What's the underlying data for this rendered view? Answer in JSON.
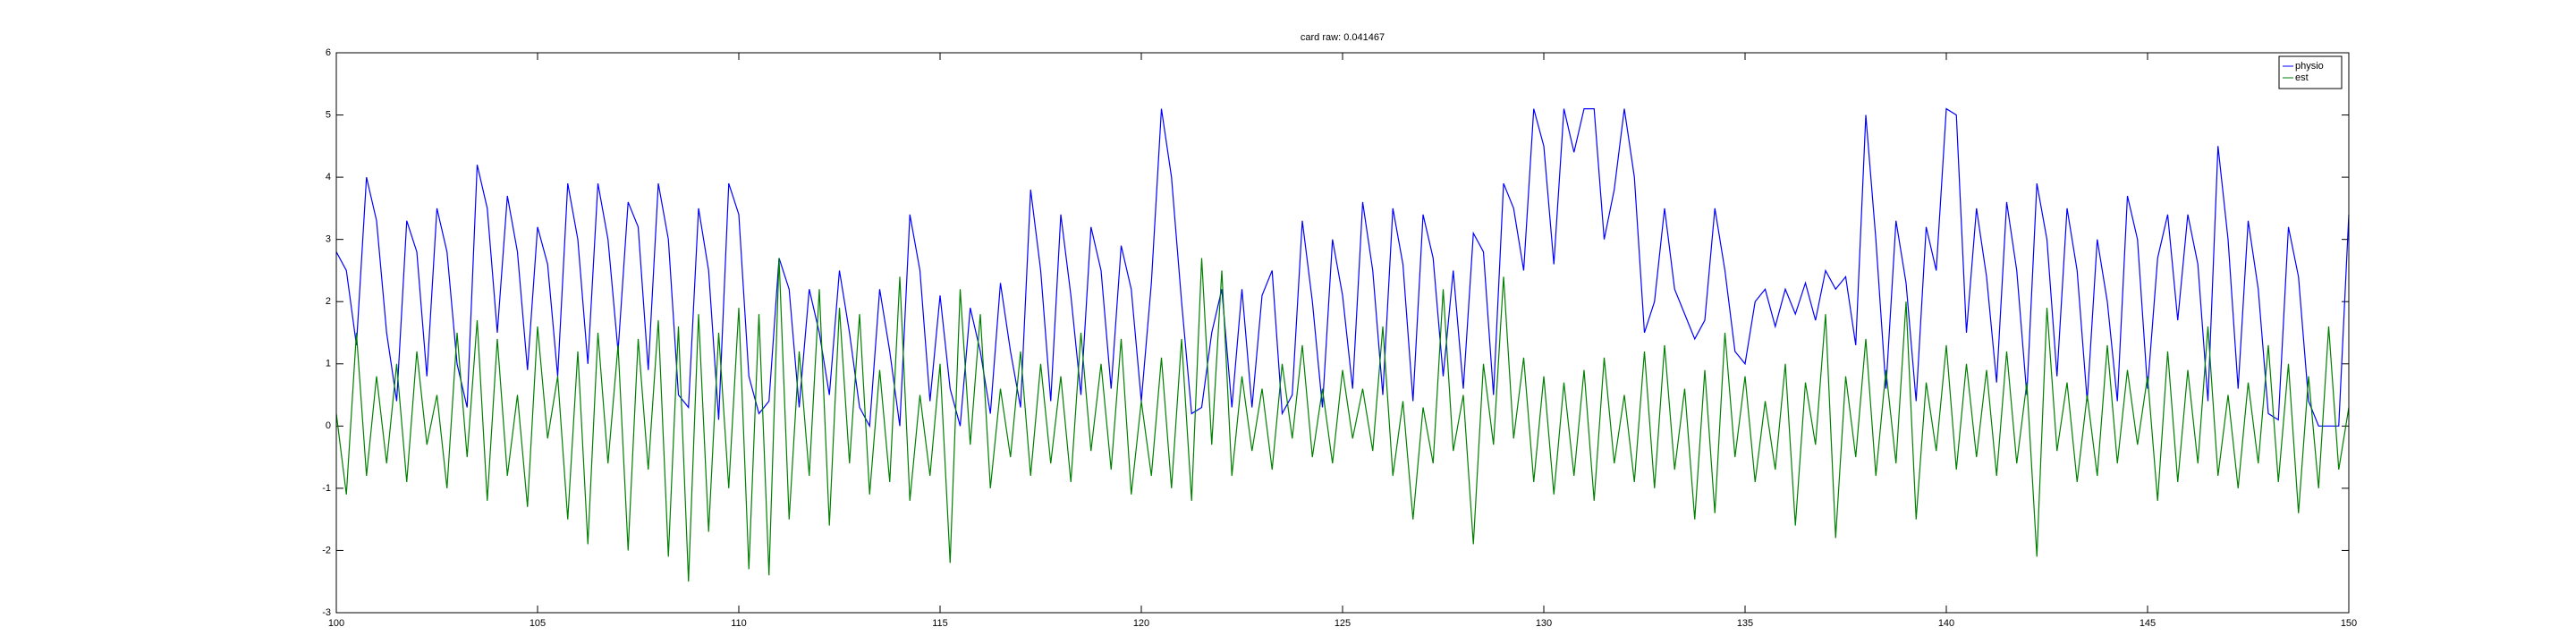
{
  "chart_data": {
    "type": "line",
    "title": "card raw: 0.041467",
    "x": [
      100,
      100.25,
      100.5,
      100.75,
      101,
      101.25,
      101.5,
      101.75,
      102,
      102.25,
      102.5,
      102.75,
      103,
      103.25,
      103.5,
      103.75,
      104,
      104.25,
      104.5,
      104.75,
      105,
      105.25,
      105.5,
      105.75,
      106,
      106.25,
      106.5,
      106.75,
      107,
      107.25,
      107.5,
      107.75,
      108,
      108.25,
      108.5,
      108.75,
      109,
      109.25,
      109.5,
      109.75,
      110,
      110.25,
      110.5,
      110.75,
      111,
      111.25,
      111.5,
      111.75,
      112,
      112.25,
      112.5,
      112.75,
      113,
      113.25,
      113.5,
      113.75,
      114,
      114.25,
      114.5,
      114.75,
      115,
      115.25,
      115.5,
      115.75,
      116,
      116.25,
      116.5,
      116.75,
      117,
      117.25,
      117.5,
      117.75,
      118,
      118.25,
      118.5,
      118.75,
      119,
      119.25,
      119.5,
      119.75,
      120,
      120.25,
      120.5,
      120.75,
      121,
      121.25,
      121.5,
      121.75,
      122,
      122.25,
      122.5,
      122.75,
      123,
      123.25,
      123.5,
      123.75,
      124,
      124.25,
      124.5,
      124.75,
      125,
      125.25,
      125.5,
      125.75,
      126,
      126.25,
      126.5,
      126.75,
      127,
      127.25,
      127.5,
      127.75,
      128,
      128.25,
      128.5,
      128.75,
      129,
      129.25,
      129.5,
      129.75,
      130,
      130.25,
      130.5,
      130.75,
      131,
      131.25,
      131.5,
      131.75,
      132,
      132.25,
      132.5,
      132.75,
      133,
      133.25,
      133.5,
      133.75,
      134,
      134.25,
      134.5,
      134.75,
      135,
      135.25,
      135.5,
      135.75,
      136,
      136.25,
      136.5,
      136.75,
      137,
      137.25,
      137.5,
      137.75,
      138,
      138.25,
      138.5,
      138.75,
      139,
      139.25,
      139.5,
      139.75,
      140,
      140.25,
      140.5,
      140.75,
      141,
      141.25,
      141.5,
      141.75,
      142,
      142.25,
      142.5,
      142.75,
      143,
      143.25,
      143.5,
      143.75,
      144,
      144.25,
      144.5,
      144.75,
      145,
      145.25,
      145.5,
      145.75,
      146,
      146.25,
      146.5,
      146.75,
      147,
      147.25,
      147.5,
      147.75,
      148,
      148.25,
      148.5,
      148.75,
      149,
      149.25,
      149.5,
      149.75,
      150
    ],
    "series": [
      {
        "name": "physio",
        "color": "#0000ff",
        "values": [
          2.8,
          2.5,
          1.3,
          4.0,
          3.3,
          1.5,
          0.4,
          3.3,
          2.8,
          0.8,
          3.5,
          2.8,
          1.0,
          0.3,
          4.2,
          3.5,
          1.5,
          3.7,
          2.8,
          0.9,
          3.2,
          2.6,
          0.8,
          3.9,
          3.0,
          1.0,
          3.9,
          3.0,
          1.2,
          3.6,
          3.2,
          0.9,
          3.9,
          3.0,
          0.5,
          0.3,
          3.5,
          2.5,
          0.1,
          3.9,
          3.4,
          0.8,
          0.2,
          0.4,
          2.7,
          2.2,
          0.3,
          2.2,
          1.5,
          0.5,
          2.5,
          1.5,
          0.3,
          0.0,
          2.2,
          1.2,
          0.0,
          3.4,
          2.5,
          0.4,
          2.1,
          0.6,
          0.0,
          1.9,
          1.2,
          0.2,
          2.3,
          1.2,
          0.3,
          3.8,
          2.5,
          0.4,
          3.4,
          2.1,
          0.5,
          3.2,
          2.5,
          0.6,
          2.9,
          2.2,
          0.4,
          2.3,
          5.1,
          4.0,
          2.0,
          0.2,
          0.3,
          1.5,
          2.2,
          0.3,
          2.2,
          0.3,
          2.1,
          2.5,
          0.2,
          0.5,
          3.3,
          2.0,
          0.3,
          3.0,
          2.1,
          0.6,
          3.6,
          2.5,
          0.5,
          3.5,
          2.6,
          0.4,
          3.4,
          2.7,
          0.8,
          2.5,
          0.6,
          3.1,
          2.8,
          0.5,
          3.9,
          3.5,
          2.5,
          5.1,
          4.5,
          2.6,
          5.1,
          4.4,
          5.1,
          5.1,
          3.0,
          3.8,
          5.1,
          4.0,
          1.5,
          2.0,
          3.5,
          2.2,
          1.8,
          1.4,
          1.7,
          3.5,
          2.5,
          1.2,
          1.0,
          2.0,
          2.2,
          1.6,
          2.2,
          1.8,
          2.3,
          1.7,
          2.5,
          2.2,
          2.4,
          1.3,
          5.0,
          3.0,
          0.6,
          3.3,
          2.3,
          0.4,
          3.2,
          2.5,
          5.1,
          5.0,
          1.5,
          3.5,
          2.4,
          0.7,
          3.6,
          2.5,
          0.5,
          3.9,
          3.0,
          0.8,
          3.5,
          2.5,
          0.4,
          3.0,
          2.0,
          0.4,
          3.7,
          3.0,
          0.6,
          2.7,
          3.4,
          1.7,
          3.4,
          2.6,
          0.4,
          4.5,
          3.0,
          0.6,
          3.3,
          2.2,
          0.2,
          0.1,
          3.2,
          2.4,
          0.4,
          0.0,
          0.0,
          0.0,
          3.4
        ]
      },
      {
        "name": "est",
        "color": "#008000",
        "values": [
          0.2,
          -1.1,
          1.5,
          -0.8,
          0.8,
          -0.6,
          1.0,
          -0.9,
          1.2,
          -0.3,
          0.5,
          -1.0,
          1.5,
          -0.5,
          1.7,
          -1.2,
          1.4,
          -0.8,
          0.5,
          -1.3,
          1.6,
          -0.2,
          0.8,
          -1.5,
          1.2,
          -1.9,
          1.5,
          -0.6,
          1.3,
          -2.0,
          1.4,
          -0.7,
          1.7,
          -2.1,
          1.6,
          -2.5,
          1.8,
          -1.7,
          1.5,
          -1.0,
          1.9,
          -2.3,
          1.8,
          -2.4,
          2.7,
          -1.5,
          1.2,
          -0.8,
          2.2,
          -1.6,
          1.9,
          -0.6,
          1.8,
          -1.1,
          0.9,
          -0.9,
          2.4,
          -1.2,
          0.5,
          -0.8,
          1.0,
          -2.2,
          2.2,
          -0.3,
          1.8,
          -1.0,
          0.6,
          -0.5,
          1.2,
          -0.8,
          1.0,
          -0.6,
          0.8,
          -0.9,
          1.5,
          -0.4,
          1.0,
          -0.7,
          1.4,
          -1.1,
          0.4,
          -0.8,
          1.1,
          -1.0,
          1.4,
          -1.2,
          2.7,
          -0.3,
          2.5,
          -0.8,
          0.8,
          -0.4,
          0.6,
          -0.7,
          1.0,
          -0.2,
          1.3,
          -0.5,
          0.6,
          -0.6,
          0.9,
          -0.2,
          0.6,
          -0.4,
          1.6,
          -0.8,
          0.4,
          -1.5,
          0.3,
          -0.6,
          2.2,
          -0.4,
          0.5,
          -1.9,
          1.0,
          -0.3,
          2.4,
          -0.2,
          1.1,
          -0.9,
          0.8,
          -1.1,
          0.7,
          -0.8,
          0.9,
          -1.2,
          1.1,
          -0.6,
          0.5,
          -0.9,
          1.2,
          -1.0,
          1.3,
          -0.7,
          0.6,
          -1.5,
          0.9,
          -1.4,
          1.5,
          -0.5,
          0.8,
          -0.9,
          0.4,
          -0.7,
          1.0,
          -1.6,
          0.7,
          -0.3,
          1.8,
          -1.8,
          0.8,
          -0.5,
          1.4,
          -0.8,
          0.9,
          -0.6,
          2.0,
          -1.5,
          0.7,
          -0.4,
          1.3,
          -0.7,
          1.0,
          -0.5,
          0.9,
          -0.8,
          1.2,
          -0.6,
          0.7,
          -2.1,
          1.9,
          -0.4,
          0.7,
          -0.9,
          0.5,
          -0.8,
          1.3,
          -0.6,
          0.9,
          -0.3,
          0.8,
          -1.2,
          1.2,
          -0.9,
          0.9,
          -0.6,
          1.6,
          -0.8,
          0.5,
          -1.0,
          0.7,
          -0.6,
          1.3,
          -0.9,
          1.0,
          -1.4,
          0.8,
          -1.0,
          1.6,
          -0.7,
          0.3
        ]
      }
    ],
    "xlim": [
      100,
      150
    ],
    "xticks": [
      100,
      105,
      110,
      115,
      120,
      125,
      130,
      135,
      140,
      145,
      150
    ],
    "ylim": [
      -3,
      6
    ],
    "yticks": [
      -3,
      -2,
      -1,
      0,
      1,
      2,
      3,
      4,
      5,
      6
    ],
    "legend": "upper right",
    "grid": false
  }
}
